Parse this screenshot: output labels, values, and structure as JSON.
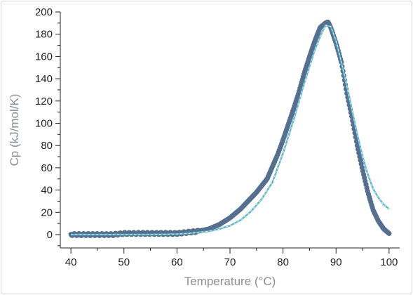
{
  "chart_data": {
    "type": "scatter",
    "title": "",
    "xlabel": "Temperature (°C)",
    "ylabel": "Cp (kJ/mol/K)",
    "xlim": [
      38,
      102
    ],
    "ylim": [
      -12,
      200
    ],
    "xticks": [
      40,
      50,
      60,
      70,
      80,
      90,
      100
    ],
    "yticks": [
      0,
      20,
      40,
      60,
      80,
      100,
      120,
      140,
      160,
      180,
      200
    ],
    "grid": false,
    "legend": "none",
    "colors": {
      "data": "#566f8f",
      "fit": "#5fb3c7",
      "fit_dash": "#d8eef3",
      "axis": "#222222",
      "frame": "#d4d8dc"
    },
    "series": [
      {
        "kind": "scatter",
        "x": [
          40,
          42,
          44,
          46,
          48,
          50,
          52,
          54,
          56,
          58,
          60,
          62,
          64,
          66,
          67,
          68,
          69,
          70,
          71,
          72,
          73,
          74,
          75,
          76,
          77,
          78,
          79,
          80,
          81,
          82,
          83,
          84,
          85,
          86,
          87,
          88,
          88.5,
          89,
          90,
          91,
          92,
          93,
          94,
          95,
          96,
          97,
          98,
          99,
          100
        ],
        "y": [
          0,
          0,
          0,
          0,
          0,
          1,
          1,
          1,
          1,
          1,
          1,
          2,
          3,
          5,
          7,
          9,
          12,
          15,
          19,
          23,
          28,
          33,
          38,
          44,
          50,
          61,
          72,
          85,
          99,
          113,
          128,
          145,
          160,
          174,
          186,
          190,
          191,
          186,
          172,
          155,
          128,
          105,
          80,
          58,
          38,
          22,
          12,
          5,
          1
        ]
      },
      {
        "kind": "fit",
        "x": [
          40,
          45,
          50,
          55,
          60,
          62,
          64,
          66,
          68,
          70,
          72,
          74,
          76,
          78,
          80,
          82,
          84,
          86,
          87,
          88,
          89,
          90,
          91,
          92,
          93,
          94,
          95,
          96,
          97,
          98,
          99,
          100
        ],
        "y": [
          0,
          0,
          0,
          0,
          0.5,
          1,
          2,
          3,
          5,
          8,
          13,
          21,
          32,
          47,
          73,
          103,
          136,
          166,
          178,
          188,
          187,
          174,
          155,
          134,
          112,
          90,
          70,
          54,
          41,
          33,
          27,
          23
        ]
      }
    ]
  }
}
